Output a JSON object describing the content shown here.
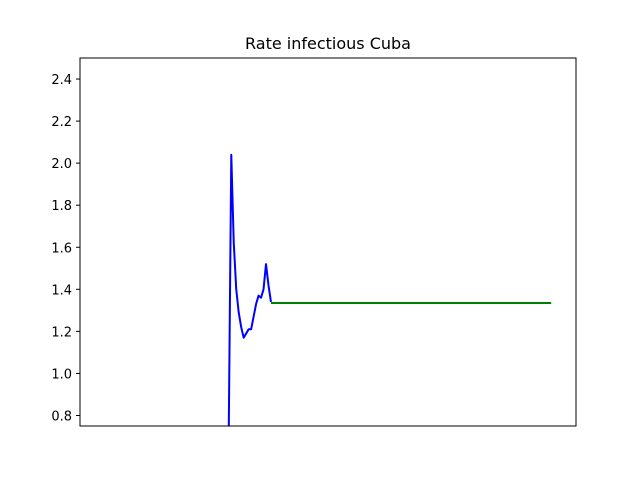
{
  "chart_data": {
    "type": "line",
    "title": "Rate infectious Cuba",
    "xlabel": "",
    "ylabel": "",
    "ylim": [
      0.75,
      2.5
    ],
    "xlim": [
      0,
      100
    ],
    "x_ticks_visible": false,
    "y_ticks": [
      "0.8",
      "1.0",
      "1.2",
      "1.4",
      "1.6",
      "1.8",
      "2.0",
      "2.2",
      "2.4"
    ],
    "grid": false,
    "series": [
      {
        "color": "#0000ff",
        "x": [
          30.0,
          30.5,
          31.0,
          31.5,
          32.0,
          32.5,
          33.0,
          33.5,
          34.0,
          34.5,
          35.0,
          35.5,
          36.0,
          36.5,
          37.0,
          37.5,
          38.0,
          38.5
        ],
        "y": [
          0.75,
          2.04,
          1.62,
          1.4,
          1.29,
          1.22,
          1.17,
          1.19,
          1.21,
          1.21,
          1.27,
          1.33,
          1.37,
          1.36,
          1.4,
          1.52,
          1.42,
          1.34
        ]
      },
      {
        "color": "#008000",
        "x": [
          38.5,
          95.0
        ],
        "y": [
          1.335,
          1.335
        ]
      }
    ]
  }
}
